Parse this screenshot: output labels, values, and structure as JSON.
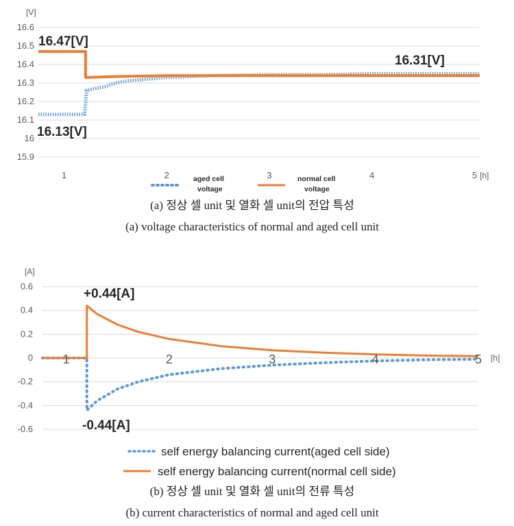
{
  "chart_data": [
    {
      "type": "line",
      "title": "",
      "y_unit": "[V]",
      "x_unit": "[h]",
      "xlim": [
        0.75,
        5.05
      ],
      "ylim": [
        15.9,
        16.6
      ],
      "yticks": [
        "15.9",
        "16",
        "16.1",
        "16.2",
        "16.3",
        "16.4",
        "16.5",
        "16.6"
      ],
      "xticks": [
        "1",
        "2",
        "3",
        "4",
        "5"
      ],
      "grid": true,
      "legend_position": "bottom",
      "series": [
        {
          "name": "aged cell voltage",
          "style": "dotted",
          "color": "#5B9BD5",
          "points": [
            [
              0.75,
              16.13
            ],
            [
              0.95,
              16.13
            ],
            [
              1.0,
              16.13
            ],
            [
              1.1,
              16.13
            ],
            [
              1.2,
              16.13
            ],
            [
              1.21,
              16.19
            ],
            [
              1.22,
              16.26
            ],
            [
              1.3,
              16.27
            ],
            [
              1.4,
              16.28
            ],
            [
              1.5,
              16.3
            ],
            [
              1.6,
              16.31
            ],
            [
              1.8,
              16.32
            ],
            [
              2.0,
              16.33
            ],
            [
              2.5,
              16.34
            ],
            [
              3.0,
              16.345
            ],
            [
              3.5,
              16.345
            ],
            [
              4.0,
              16.35
            ],
            [
              4.5,
              16.35
            ],
            [
              5.05,
              16.35
            ]
          ]
        },
        {
          "name": "normal cell voltage",
          "style": "solid",
          "color": "#ED7D31",
          "points": [
            [
              0.75,
              16.47
            ],
            [
              1.21,
              16.47
            ],
            [
              1.21,
              16.33
            ],
            [
              1.5,
              16.335
            ],
            [
              2.0,
              16.34
            ],
            [
              3.0,
              16.34
            ],
            [
              4.0,
              16.34
            ],
            [
              5.05,
              16.34
            ]
          ]
        }
      ],
      "annotations": [
        "16.47[V]",
        "16.13[V]",
        "16.31[V]"
      ]
    },
    {
      "type": "line",
      "title": "",
      "y_unit": "[A]",
      "x_unit": "[h]",
      "xlim": [
        0.77,
        5.0
      ],
      "ylim": [
        -0.6,
        0.6
      ],
      "yticks": [
        "-0.6",
        "-0.4",
        "-0.2",
        "0",
        "0.2",
        "0.4",
        "0.6"
      ],
      "xticks": [
        "1",
        "2",
        "3",
        "4",
        "5"
      ],
      "grid": true,
      "legend_position": "bottom",
      "series": [
        {
          "name": "self energy balancing current(aged cell side)",
          "style": "dotted",
          "color": "#5B9BD5",
          "points": [
            [
              0.77,
              0.0
            ],
            [
              1.2,
              0.0
            ],
            [
              1.2,
              -0.44
            ],
            [
              1.3,
              -0.36
            ],
            [
              1.5,
              -0.26
            ],
            [
              1.7,
              -0.2
            ],
            [
              2.0,
              -0.14
            ],
            [
              2.5,
              -0.09
            ],
            [
              3.0,
              -0.06
            ],
            [
              3.5,
              -0.04
            ],
            [
              4.0,
              -0.025
            ],
            [
              4.5,
              -0.015
            ],
            [
              5.0,
              -0.01
            ]
          ]
        },
        {
          "name": "self energy balancing current(normal cell side)",
          "style": "solid",
          "color": "#ED7D31",
          "points": [
            [
              0.77,
              0.0
            ],
            [
              1.2,
              0.0
            ],
            [
              1.2,
              0.44
            ],
            [
              1.3,
              0.37
            ],
            [
              1.5,
              0.28
            ],
            [
              1.7,
              0.22
            ],
            [
              2.0,
              0.16
            ],
            [
              2.5,
              0.1
            ],
            [
              3.0,
              0.065
            ],
            [
              3.5,
              0.045
            ],
            [
              4.0,
              0.03
            ],
            [
              4.5,
              0.02
            ],
            [
              5.0,
              0.015
            ]
          ]
        }
      ],
      "annotations": [
        "+0.44[A]",
        "-0.44[A]"
      ]
    }
  ],
  "captions": {
    "a_korean": "(a) 정상 셀 unit 및 열화 셀 unit의 전압 특성",
    "a_english": "(a) voltage characteristics of normal and aged cell unit",
    "b_korean": "(b) 정상 셀 unit 및 열화 셀 unit의 전류 특성",
    "b_english": "(b) current characteristics of normal and aged cell unit"
  },
  "legend_a": {
    "aged_line1": "aged cell",
    "aged_line2": "voltage",
    "normal_line1": "normal cell",
    "normal_line2": "voltage"
  },
  "legend_b": {
    "aged": "self energy balancing current(aged cell side)",
    "normal": "self energy balancing current(normal cell side)"
  }
}
